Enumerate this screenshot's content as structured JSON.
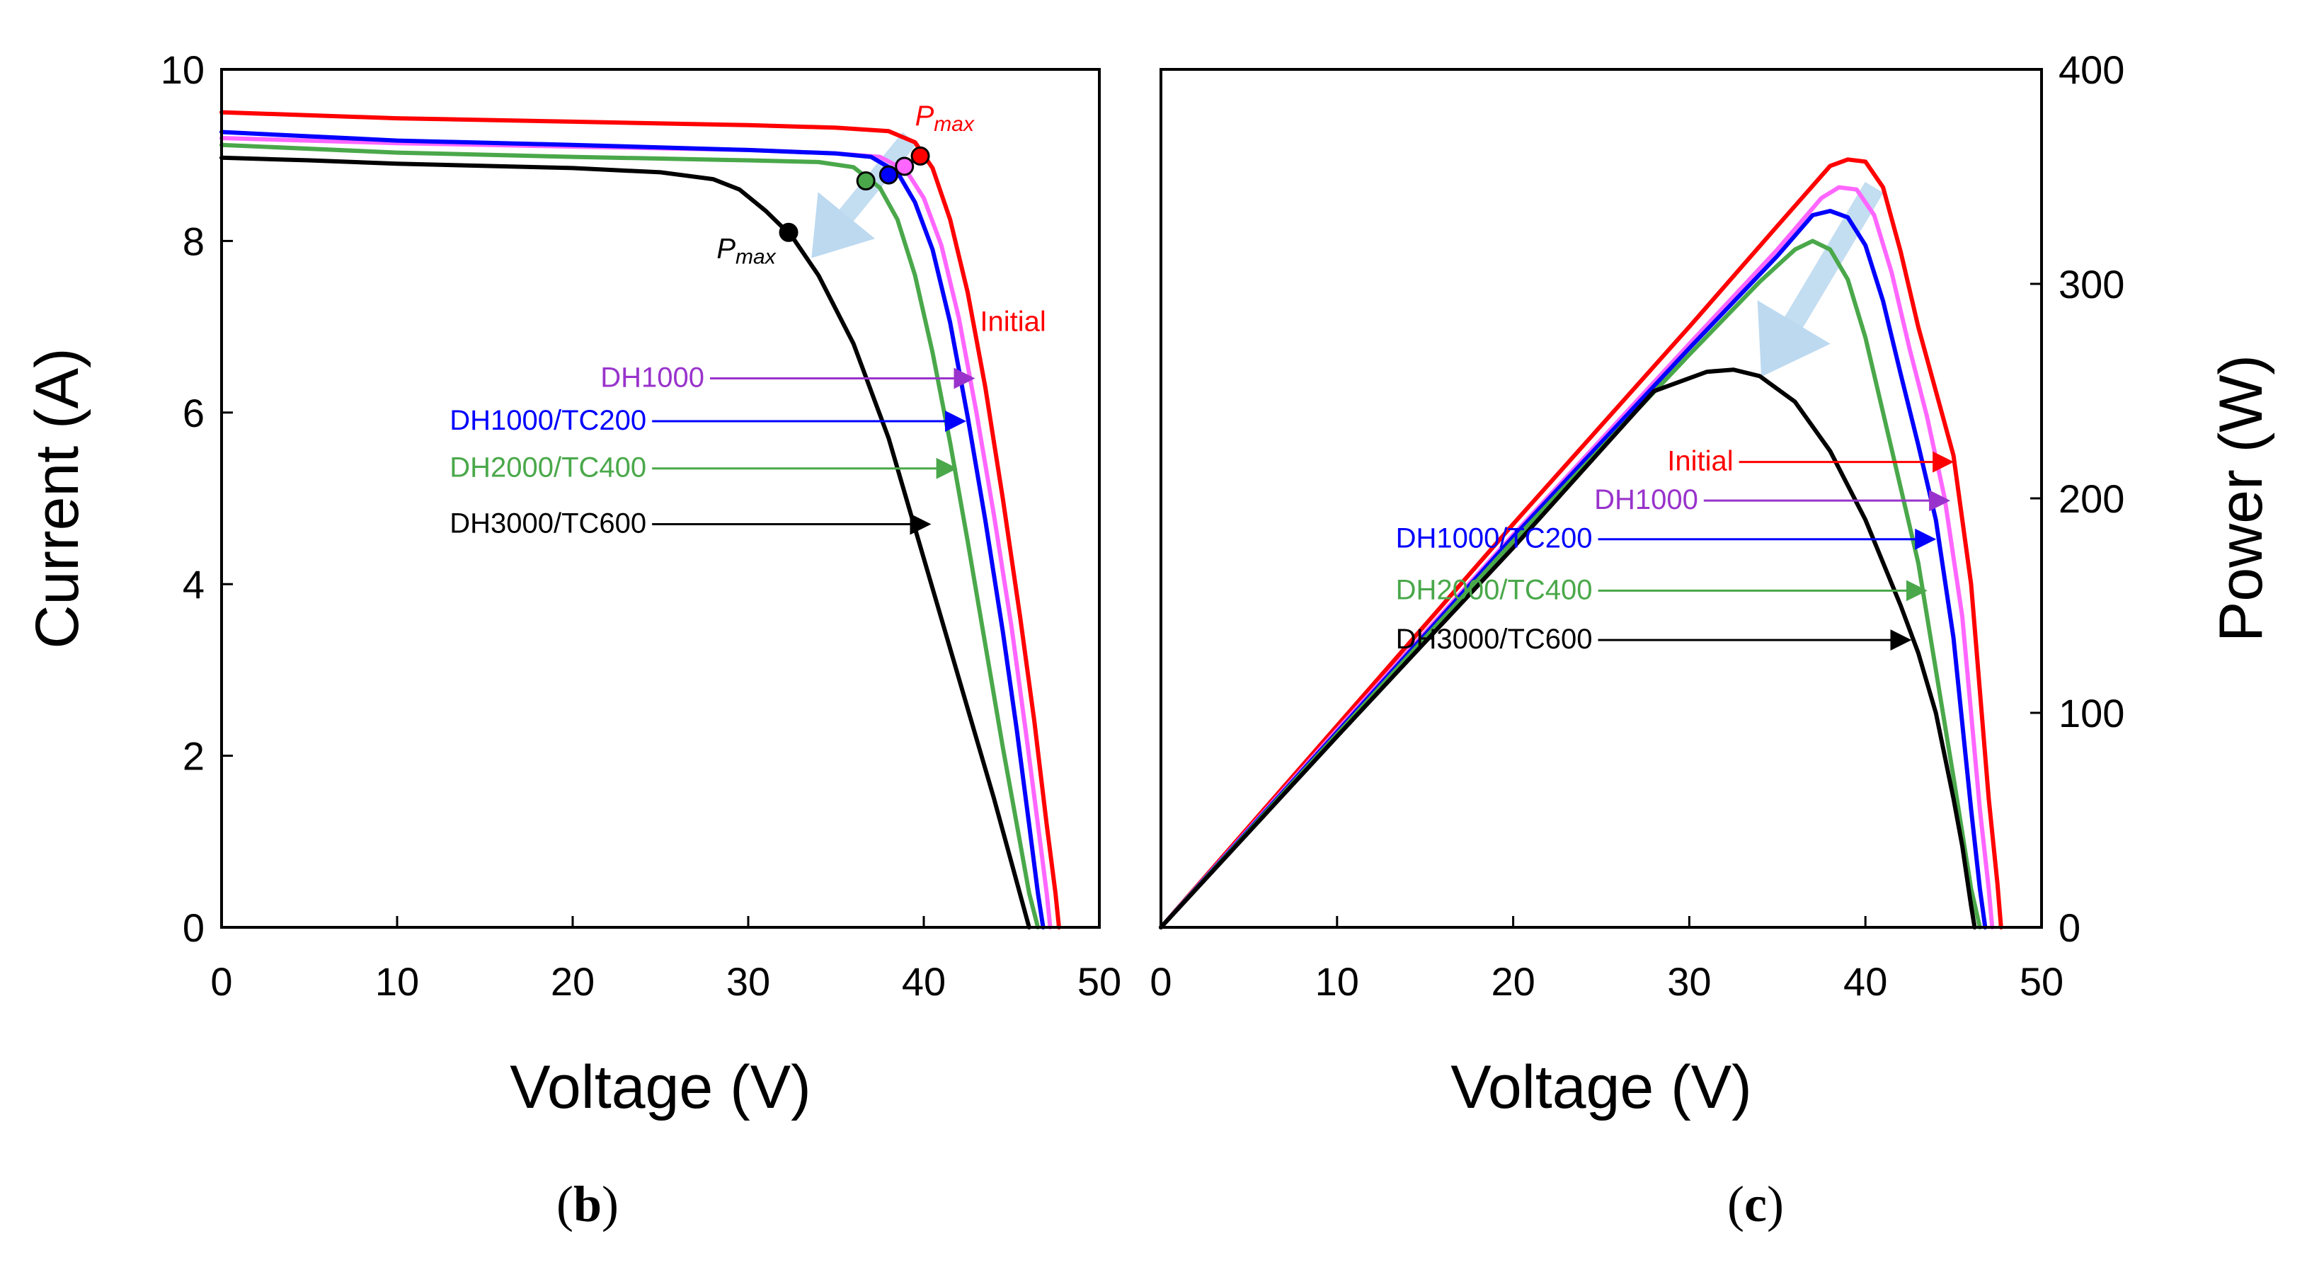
{
  "chart_data": [
    {
      "type": "line",
      "panel_label_open": "(",
      "panel_label_letter": "b",
      "panel_label_close": ")",
      "xlabel": "Voltage (V)",
      "ylabel": "Current (A)",
      "xlim": [
        0,
        50
      ],
      "ylim": [
        0,
        10
      ],
      "xticks": [
        "0",
        "10",
        "20",
        "30",
        "40",
        "50"
      ],
      "yticks": [
        "0",
        "2",
        "4",
        "6",
        "8",
        "10"
      ],
      "grid": false,
      "series": [
        {
          "name": "Initial",
          "color": "#ff0000",
          "x": [
            0,
            10,
            20,
            30,
            35,
            38,
            39.5,
            40.5,
            41.5,
            42.5,
            43.5,
            44.5,
            45.5,
            46.3,
            47,
            47.5,
            47.7
          ],
          "y": [
            9.5,
            9.43,
            9.39,
            9.35,
            9.32,
            9.28,
            9.15,
            8.85,
            8.25,
            7.4,
            6.3,
            5.0,
            3.6,
            2.4,
            1.2,
            0.4,
            0
          ]
        },
        {
          "name": "DH1000",
          "color": "#ff66ff",
          "x": [
            0,
            10,
            20,
            30,
            35,
            37.5,
            39,
            40,
            41,
            42,
            43,
            44,
            45,
            45.8,
            46.5,
            47,
            47.2
          ],
          "y": [
            9.2,
            9.14,
            9.1,
            9.06,
            9.02,
            8.98,
            8.82,
            8.5,
            7.95,
            7.1,
            6.0,
            4.8,
            3.5,
            2.3,
            1.2,
            0.4,
            0
          ]
        },
        {
          "name": "DH1000/TC200",
          "color": "#0000ff",
          "x": [
            0,
            10,
            20,
            30,
            35,
            37,
            38.5,
            39.5,
            40.5,
            41.5,
            42.5,
            43.5,
            44.5,
            45.3,
            46,
            46.5,
            46.8
          ],
          "y": [
            9.27,
            9.17,
            9.12,
            9.06,
            9.02,
            8.98,
            8.8,
            8.45,
            7.9,
            7.05,
            5.95,
            4.75,
            3.45,
            2.3,
            1.2,
            0.4,
            0
          ]
        },
        {
          "name": "DH2000/TC400",
          "color": "#4aa84a",
          "x": [
            0,
            10,
            20,
            30,
            34,
            36,
            37.5,
            38.5,
            39.5,
            40.5,
            41.5,
            42.5,
            43.5,
            44.5,
            45.3,
            46,
            46.5
          ],
          "y": [
            9.12,
            9.03,
            8.98,
            8.94,
            8.92,
            8.86,
            8.62,
            8.25,
            7.6,
            6.7,
            5.65,
            4.5,
            3.3,
            2.1,
            1.2,
            0.4,
            0
          ]
        },
        {
          "name": "DH3000/TC600",
          "color": "#000000",
          "x": [
            0,
            5,
            10,
            20,
            25,
            28,
            29.5,
            31,
            32.5,
            34,
            36,
            38,
            40,
            42,
            44,
            45.2,
            46
          ],
          "y": [
            8.97,
            8.94,
            8.9,
            8.85,
            8.8,
            8.72,
            8.6,
            8.35,
            8.05,
            7.6,
            6.8,
            5.7,
            4.3,
            2.9,
            1.5,
            0.6,
            0
          ]
        }
      ],
      "pmax_points": [
        {
          "series": "Initial",
          "x": 39.8,
          "y": 8.99,
          "color": "#ff0000"
        },
        {
          "series": "DH1000",
          "x": 38.9,
          "y": 8.87,
          "color": "#ff66ff"
        },
        {
          "series": "DH1000/TC200",
          "x": 38.0,
          "y": 8.77,
          "color": "#0000ff"
        },
        {
          "series": "DH2000/TC400",
          "x": 36.7,
          "y": 8.7,
          "color": "#4aa84a"
        },
        {
          "series": "DH3000/TC600",
          "x": 32.3,
          "y": 8.1,
          "color": "#000000"
        }
      ],
      "annotations": [
        {
          "text": "Pmax",
          "color": "#ff0000",
          "x": 39.5,
          "y": 9.35
        },
        {
          "text": "Pmax",
          "color": "#000000",
          "x": 28.2,
          "y": 7.8
        },
        {
          "text": "Initial",
          "color": "#ff0000",
          "x": 43.2,
          "y": 6.95
        },
        {
          "text": "DH1000",
          "color": "#9933cc",
          "x": 27.5,
          "y": 6.3,
          "arrow_to": [
            42.8,
            6.3
          ]
        },
        {
          "text": "DH1000/TC200",
          "color": "#0000ff",
          "x": 24.2,
          "y": 5.8,
          "arrow_to": [
            42.3,
            5.8
          ]
        },
        {
          "text": "DH2000/TC400",
          "color": "#4aa84a",
          "x": 24.2,
          "y": 5.25,
          "arrow_to": [
            41.8,
            5.25
          ]
        },
        {
          "text": "DH3000/TC600",
          "color": "#000000",
          "x": 24.2,
          "y": 4.6,
          "arrow_to": [
            40.3,
            4.6
          ]
        }
      ]
    },
    {
      "type": "line",
      "panel_label_open": "(",
      "panel_label_letter": "c",
      "panel_label_close": ")",
      "xlabel": "Voltage (V)",
      "ylabel": "Power (W)",
      "xlim": [
        0,
        50
      ],
      "ylim": [
        0,
        400
      ],
      "xticks": [
        "0",
        "10",
        "20",
        "30",
        "40",
        "50"
      ],
      "yticks": [
        "0",
        "100",
        "200",
        "300",
        "400"
      ],
      "grid": false,
      "series": [
        {
          "name": "Initial",
          "color": "#ff0000",
          "x": [
            0,
            10,
            20,
            30,
            35,
            38,
            39,
            40,
            41,
            42,
            43,
            44,
            45,
            46,
            47,
            47.5,
            47.7
          ],
          "y": [
            0,
            94,
            188,
            280,
            327,
            355,
            358,
            357,
            345,
            315,
            280,
            250,
            220,
            160,
            60,
            20,
            0
          ]
        },
        {
          "name": "DH1000",
          "color": "#ff66ff",
          "x": [
            0,
            10,
            20,
            30,
            35,
            37.5,
            38.5,
            39.5,
            40.5,
            41.5,
            42.5,
            43.5,
            44.5,
            45.5,
            46.5,
            47,
            47.2
          ],
          "y": [
            0,
            92,
            183,
            272,
            316,
            340,
            345,
            344,
            332,
            305,
            270,
            238,
            200,
            145,
            55,
            18,
            0
          ]
        },
        {
          "name": "DH1000/TC200",
          "color": "#0000ff",
          "x": [
            0,
            10,
            20,
            30,
            35,
            37,
            38,
            39,
            40,
            41,
            42,
            43,
            44,
            45,
            46,
            46.5,
            46.8
          ],
          "y": [
            0,
            91,
            182,
            270,
            313,
            332,
            334,
            331,
            318,
            292,
            258,
            225,
            190,
            135,
            55,
            18,
            0
          ]
        },
        {
          "name": "DH2000/TC400",
          "color": "#4aa84a",
          "x": [
            0,
            10,
            20,
            30,
            34,
            36,
            37,
            38,
            39,
            40,
            41,
            42,
            43,
            44,
            45,
            46,
            46.5
          ],
          "y": [
            0,
            90,
            180,
            267,
            301,
            316,
            320,
            316,
            302,
            275,
            240,
            205,
            170,
            120,
            70,
            18,
            0
          ]
        },
        {
          "name": "DH3000/TC600",
          "color": "#000000",
          "x": [
            0,
            10,
            20,
            28,
            31,
            32.5,
            34,
            36,
            38,
            40,
            42,
            43,
            44,
            45,
            45.5,
            46,
            46.2
          ],
          "y": [
            0,
            89,
            177,
            250,
            259,
            260,
            257,
            245,
            222,
            190,
            150,
            128,
            100,
            60,
            38,
            10,
            0
          ]
        }
      ],
      "annotations": [
        {
          "text": "Initial",
          "color": "#ff0000",
          "x": 32.5,
          "y": 213,
          "arrow_to": [
            44.9,
            213
          ]
        },
        {
          "text": "DH1000",
          "color": "#9933cc",
          "x": 30.5,
          "y": 195,
          "arrow_to": [
            44.7,
            195
          ]
        },
        {
          "text": "DH1000/TC200",
          "color": "#0000ff",
          "x": 24.5,
          "y": 177,
          "arrow_to": [
            43.9,
            177
          ]
        },
        {
          "text": "DH2000/TC400",
          "color": "#4aa84a",
          "x": 24.5,
          "y": 153,
          "arrow_to": [
            43.4,
            153
          ]
        },
        {
          "text": "DH3000/TC600",
          "color": "#000000",
          "x": 24.5,
          "y": 130,
          "arrow_to": [
            42.5,
            130
          ]
        }
      ]
    }
  ]
}
